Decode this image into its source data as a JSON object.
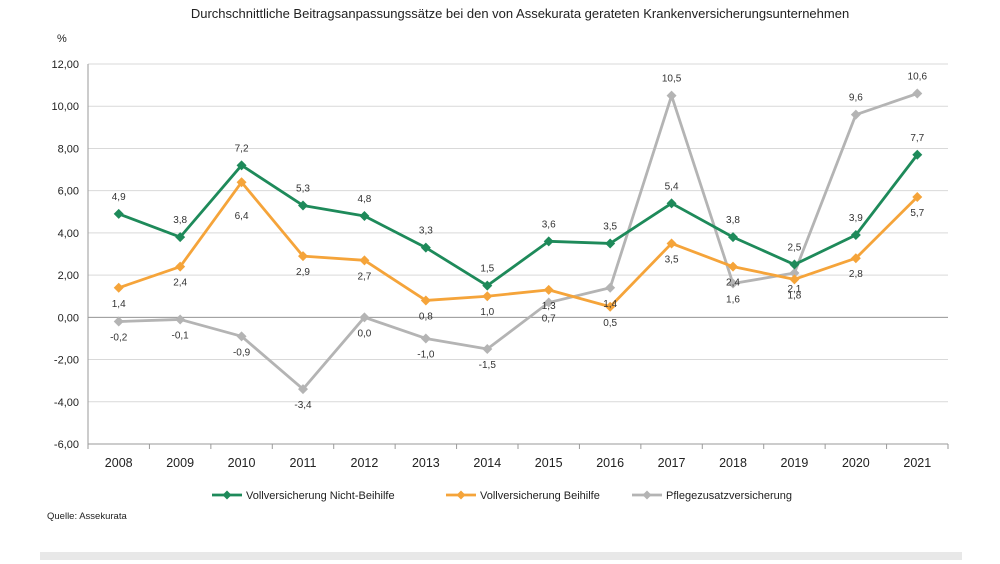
{
  "chart_data": {
    "type": "line",
    "title": "Durchschnittliche Beitragsanpassungssätze bei den von Assekurata gerateten Krankenversicherungsunternehmen",
    "ylabel": "%",
    "xlabel": "",
    "ylim": [
      -6,
      12
    ],
    "y_ticks": [
      "12,00",
      "10,00",
      "8,00",
      "6,00",
      "4,00",
      "2,00",
      "0,00",
      "-2,00",
      "-4,00",
      "-6,00"
    ],
    "categories": [
      "2008",
      "2009",
      "2010",
      "2011",
      "2012",
      "2013",
      "2014",
      "2015",
      "2016",
      "2017",
      "2018",
      "2019",
      "2020",
      "2021"
    ],
    "grid": "horizontal",
    "legend_position": "bottom",
    "series": [
      {
        "name": "Vollversicherung Nicht-Beihilfe",
        "color": "#1e8a5a",
        "values": [
          4.9,
          3.8,
          7.2,
          5.3,
          4.8,
          3.3,
          1.5,
          3.6,
          3.5,
          5.4,
          3.8,
          2.5,
          3.9,
          7.7
        ],
        "labels": [
          "4,9",
          "3,8",
          "7,2",
          "5,3",
          "4,8",
          "3,3",
          "1,5",
          "3,6",
          "3,5",
          "5,4",
          "3,8",
          "2,5",
          "3,9",
          "7,7"
        ]
      },
      {
        "name": "Vollversicherung Beihilfe",
        "color": "#f5a43a",
        "values": [
          1.4,
          2.4,
          6.4,
          2.9,
          2.7,
          0.8,
          1.0,
          1.3,
          0.5,
          3.5,
          2.4,
          1.8,
          2.8,
          5.7
        ],
        "labels": [
          "1,4",
          "2,4",
          "6,4",
          "2,9",
          "2,7",
          "0,8",
          "1,0",
          "1,3",
          "0,5",
          "3,5",
          "2,4",
          "1,8",
          "2,8",
          "5,7"
        ]
      },
      {
        "name": "Pflegezusatzversicherung",
        "color": "#b4b4b4",
        "values": [
          -0.2,
          -0.1,
          -0.9,
          -3.4,
          0.0,
          -1.0,
          -1.5,
          0.7,
          1.4,
          10.5,
          1.6,
          2.1,
          9.6,
          10.6
        ],
        "labels": [
          "-0,2",
          "-0,1",
          "-0,9",
          "-3,4",
          "0,0",
          "-1,0",
          "-1,5",
          "0,7",
          "1,4",
          "10,5",
          "1,6",
          "2,1",
          "9,6",
          "10,6"
        ]
      }
    ],
    "source": "Quelle: Assekurata"
  }
}
